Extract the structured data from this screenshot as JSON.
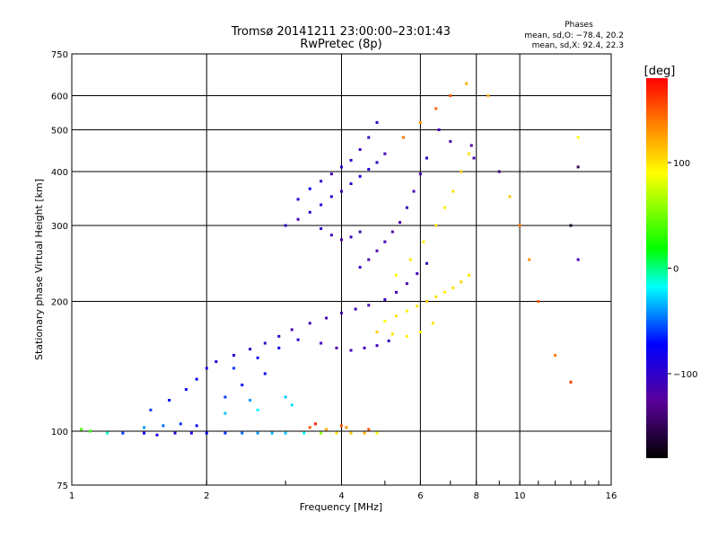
{
  "chart_data": {
    "type": "scatter",
    "title": "Tromsø 20141211 23:00:00–23:01:43",
    "subtitle": "RwPretec (8p)",
    "xlabel": "Frequency [MHz]",
    "ylabel": "Stationary phase Virtual Height [km]",
    "x_scale": "log",
    "y_scale": "log",
    "xlim": [
      1,
      16
    ],
    "ylim": [
      75,
      750
    ],
    "x_ticks": [
      "1",
      "2",
      "4",
      "6",
      "8",
      "10",
      "16"
    ],
    "x_tick_values": [
      1,
      2,
      4,
      6,
      8,
      10,
      16
    ],
    "y_ticks": [
      "75",
      "100",
      "200",
      "300",
      "400",
      "500",
      "600",
      "750"
    ],
    "y_tick_values": [
      75,
      100,
      200,
      300,
      400,
      500,
      600,
      750
    ],
    "grid": true,
    "stats": {
      "heading": "Phases",
      "line_o": "mean, sd,O: −78.4, 20.2",
      "line_x": "mean, sd,X:  92.4, 22.3"
    },
    "colorbar": {
      "label": "[deg]",
      "range": [
        -180,
        180
      ],
      "ticks": [
        "100",
        "0",
        "−100"
      ],
      "tick_values": [
        100,
        0,
        -100
      ]
    },
    "series": [
      {
        "points": [
          [
            1.05,
            101,
            40
          ],
          [
            1.1,
            100,
            30
          ],
          [
            1.2,
            99,
            -10
          ],
          [
            1.3,
            99,
            -60
          ],
          [
            1.45,
            99,
            -80
          ],
          [
            1.55,
            98,
            -90
          ],
          [
            1.7,
            99,
            -95
          ],
          [
            1.85,
            99,
            -85
          ],
          [
            2.0,
            99,
            -75
          ],
          [
            2.2,
            99,
            -60
          ],
          [
            2.4,
            99,
            -50
          ],
          [
            2.6,
            99,
            -40
          ],
          [
            2.8,
            99,
            -35
          ],
          [
            3.0,
            99,
            -30
          ],
          [
            3.3,
            99,
            -20
          ],
          [
            3.6,
            99,
            60
          ],
          [
            3.9,
            99,
            100
          ],
          [
            4.2,
            99,
            110
          ],
          [
            4.5,
            99,
            120
          ],
          [
            4.8,
            99,
            90
          ],
          [
            1.45,
            102,
            -40
          ],
          [
            1.6,
            103,
            -50
          ],
          [
            1.75,
            104,
            -60
          ],
          [
            1.9,
            103,
            -70
          ],
          [
            3.4,
            102,
            150
          ],
          [
            3.7,
            101,
            120
          ],
          [
            4.1,
            102,
            130
          ],
          [
            4.6,
            101,
            150
          ],
          [
            1.5,
            112,
            -60
          ],
          [
            1.65,
            118,
            -70
          ],
          [
            1.8,
            125,
            -80
          ],
          [
            1.9,
            132,
            -75
          ],
          [
            2.0,
            140,
            -85
          ],
          [
            2.1,
            145,
            -90
          ],
          [
            2.3,
            150,
            -95
          ],
          [
            2.5,
            155,
            -100
          ],
          [
            2.7,
            160,
            -105
          ],
          [
            2.9,
            166,
            -105
          ],
          [
            3.1,
            172,
            -110
          ],
          [
            3.4,
            178,
            -110
          ],
          [
            3.7,
            183,
            -115
          ],
          [
            4.0,
            188,
            -115
          ],
          [
            4.3,
            192,
            -110
          ],
          [
            4.6,
            196,
            -110
          ],
          [
            5.0,
            202,
            -105
          ],
          [
            5.3,
            210,
            -110
          ],
          [
            5.6,
            220,
            -115
          ],
          [
            5.9,
            232,
            -110
          ],
          [
            6.2,
            245,
            -105
          ],
          [
            2.3,
            140,
            -60
          ],
          [
            2.6,
            148,
            -70
          ],
          [
            2.9,
            156,
            -85
          ],
          [
            3.2,
            163,
            -95
          ],
          [
            3.6,
            160,
            -110
          ],
          [
            3.9,
            156,
            -120
          ],
          [
            4.2,
            154,
            -115
          ],
          [
            4.5,
            156,
            -110
          ],
          [
            4.8,
            158,
            -105
          ],
          [
            5.1,
            162,
            -100
          ],
          [
            2.2,
            120,
            -60
          ],
          [
            2.4,
            128,
            -70
          ],
          [
            2.7,
            136,
            -80
          ],
          [
            2.5,
            118,
            -40
          ],
          [
            3.0,
            120,
            -30
          ],
          [
            4.4,
            240,
            -110
          ],
          [
            4.6,
            250,
            -115
          ],
          [
            4.8,
            262,
            -120
          ],
          [
            5.0,
            275,
            -110
          ],
          [
            5.2,
            290,
            -120
          ],
          [
            5.4,
            305,
            -115
          ],
          [
            5.6,
            330,
            -110
          ],
          [
            5.8,
            360,
            -115
          ],
          [
            6.0,
            395,
            -110
          ],
          [
            6.2,
            430,
            -100
          ],
          [
            3.0,
            300,
            -100
          ],
          [
            3.2,
            310,
            -110
          ],
          [
            3.4,
            322,
            -100
          ],
          [
            3.6,
            335,
            -90
          ],
          [
            3.8,
            350,
            -95
          ],
          [
            4.0,
            360,
            -110
          ],
          [
            4.2,
            375,
            -100
          ],
          [
            4.4,
            390,
            -90
          ],
          [
            4.6,
            405,
            -95
          ],
          [
            4.8,
            420,
            -100
          ],
          [
            5.0,
            440,
            -110
          ],
          [
            3.2,
            345,
            -90
          ],
          [
            3.4,
            365,
            -80
          ],
          [
            3.6,
            380,
            -100
          ],
          [
            3.8,
            395,
            -110
          ],
          [
            4.0,
            410,
            -95
          ],
          [
            4.2,
            425,
            -100
          ],
          [
            4.4,
            450,
            -110
          ],
          [
            4.6,
            480,
            -100
          ],
          [
            4.8,
            520,
            -95
          ],
          [
            3.6,
            295,
            -100
          ],
          [
            3.8,
            285,
            -110
          ],
          [
            4.0,
            278,
            -120
          ],
          [
            4.2,
            282,
            -110
          ],
          [
            4.4,
            290,
            -115
          ],
          [
            5.0,
            180,
            90
          ],
          [
            5.3,
            185,
            100
          ],
          [
            5.6,
            190,
            95
          ],
          [
            5.9,
            195,
            100
          ],
          [
            6.2,
            200,
            110
          ],
          [
            6.5,
            205,
            100
          ],
          [
            6.8,
            210,
            95
          ],
          [
            7.1,
            215,
            100
          ],
          [
            7.4,
            222,
            105
          ],
          [
            7.7,
            230,
            100
          ],
          [
            5.3,
            230,
            90
          ],
          [
            5.7,
            250,
            100
          ],
          [
            6.1,
            275,
            95
          ],
          [
            6.5,
            300,
            100
          ],
          [
            6.8,
            330,
            95
          ],
          [
            7.1,
            360,
            100
          ],
          [
            7.4,
            400,
            110
          ],
          [
            7.7,
            440,
            100
          ],
          [
            4.8,
            170,
            110
          ],
          [
            5.2,
            168,
            100
          ],
          [
            5.6,
            166,
            95
          ],
          [
            6.0,
            170,
            90
          ],
          [
            6.4,
            178,
            100
          ],
          [
            5.5,
            480,
            140
          ],
          [
            6.0,
            520,
            130
          ],
          [
            6.5,
            560,
            145
          ],
          [
            7.0,
            600,
            150
          ],
          [
            7.6,
            640,
            120
          ],
          [
            2.2,
            110,
            -30
          ],
          [
            2.6,
            112,
            -20
          ],
          [
            3.1,
            115,
            -25
          ],
          [
            3.5,
            104,
            170
          ],
          [
            4.0,
            103,
            150
          ],
          [
            6.6,
            500,
            -110
          ],
          [
            7.0,
            470,
            -120
          ],
          [
            7.8,
            460,
            -120
          ],
          [
            7.9,
            430,
            -115
          ],
          [
            8.5,
            600,
            120
          ],
          [
            9.0,
            400,
            -140
          ],
          [
            9.5,
            350,
            110
          ],
          [
            10.0,
            300,
            140
          ],
          [
            10.5,
            250,
            130
          ],
          [
            11.0,
            200,
            150
          ],
          [
            12.0,
            150,
            140
          ],
          [
            13.0,
            130,
            160
          ],
          [
            13.5,
            480,
            90
          ],
          [
            13.5,
            410,
            -150
          ],
          [
            13.0,
            300,
            -170
          ],
          [
            13.5,
            250,
            -110
          ]
        ]
      }
    ]
  }
}
